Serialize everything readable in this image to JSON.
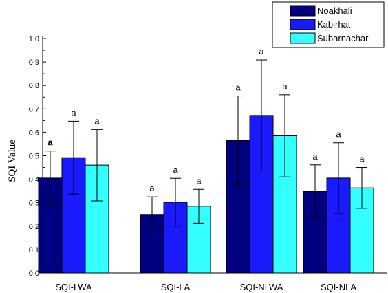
{
  "chart_data": {
    "type": "bar",
    "ylabel": "SQI Value",
    "xlabel": "",
    "ylim": [
      0,
      1.0
    ],
    "yticks": [
      "0.0",
      "0.1",
      "0.2",
      "0.3",
      "0.4",
      "0.5",
      "0.6",
      "0.7",
      "0.8",
      "0.9",
      "1.0"
    ],
    "categories": [
      "SQI-LWA",
      "SQI-LA",
      "SQI-NLWA",
      "SQI-NLA"
    ],
    "legend_position": "top-right",
    "series": [
      {
        "name": "Noakhali",
        "color": "#000080",
        "values": [
          0.405,
          0.25,
          0.565,
          0.348
        ],
        "errors": [
          0.115,
          0.075,
          0.19,
          0.113
        ],
        "labels": [
          "a",
          "a",
          "a",
          "a"
        ]
      },
      {
        "name": "Kabirhat",
        "color": "#1a1aff",
        "values": [
          0.492,
          0.302,
          0.672,
          0.405
        ],
        "errors": [
          0.155,
          0.102,
          0.237,
          0.15
        ],
        "labels": [
          "a",
          "a",
          "a",
          "a"
        ]
      },
      {
        "name": "Subarnachar",
        "color": "#33ffff",
        "values": [
          0.46,
          0.285,
          0.585,
          0.363
        ],
        "errors": [
          0.152,
          0.072,
          0.175,
          0.087
        ],
        "labels": [
          "a",
          "a",
          "a",
          "a"
        ]
      }
    ],
    "grid": false
  }
}
